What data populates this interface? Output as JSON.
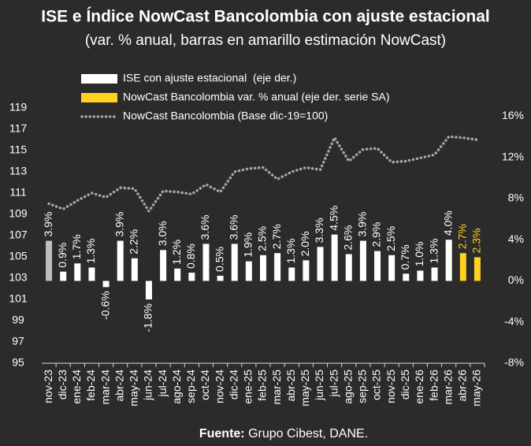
{
  "chart_data": {
    "type": "bar_line",
    "title": "ISE e Índice NowCast Bancolombia con ajuste estacional",
    "subtitle": "(var. % anual, barras en amarillo estimación NowCast)",
    "source_label": "Fuente:",
    "source": "Grupo Cibest, DANE.",
    "categories": [
      "nov-23",
      "dic-23",
      "ene-24",
      "feb-24",
      "mar-24",
      "abr-24",
      "may-24",
      "jun-24",
      "jul-24",
      "ago-24",
      "sep-24",
      "oct-24",
      "nov-24",
      "dic-24",
      "ene-25",
      "feb-25",
      "mar-25",
      "abr-25",
      "may-25",
      "jun-25",
      "jul-25",
      "ago-25",
      "sep-25",
      "oct-25",
      "nov-25",
      "dic-25",
      "ene-26",
      "feb-26",
      "mar-26",
      "abr-26",
      "may-26"
    ],
    "series": [
      {
        "name": "ISE con ajuste estacional  (eje der.)",
        "kind": "bar",
        "axis": "y2",
        "color": "#ffffff",
        "point_colors": [
          "#bfbfbf",
          null,
          null,
          null,
          null,
          null,
          null,
          null,
          null,
          null,
          null,
          null,
          null,
          null,
          null,
          null,
          null,
          null,
          null,
          null,
          null,
          null,
          null,
          null,
          null,
          null,
          null,
          null,
          null,
          null,
          null
        ],
        "values": [
          3.9,
          0.9,
          1.7,
          1.3,
          -0.6,
          3.9,
          2.2,
          -1.8,
          3.0,
          1.2,
          0.8,
          3.6,
          0.5,
          3.6,
          1.9,
          2.5,
          2.7,
          1.3,
          2.0,
          3.3,
          4.5,
          2.6,
          3.9,
          2.9,
          2.5,
          0.7,
          1.0,
          1.3,
          4.0,
          null,
          null
        ],
        "value_labels": [
          "3.9%",
          "0.9%",
          "1.7%",
          "1.3%",
          "-0.6%",
          "3.9%",
          "2.2%",
          "-1.8%",
          "3.0%",
          "1.2%",
          "0.8%",
          "3.6%",
          "0.5%",
          "3.6%",
          "1.9%",
          "2.5%",
          "2.7%",
          "1.3%",
          "2.0%",
          "3.3%",
          "4.5%",
          "2.6%",
          "3.9%",
          "2.9%",
          "2.5%",
          "0.7%",
          "1.0%",
          "1.3%",
          "4.0%",
          null,
          null
        ]
      },
      {
        "name": "NowCast Bancolombia var. % anual (eje der. serie SA)",
        "kind": "bar",
        "axis": "y2",
        "color": "#ffd21f",
        "values": [
          null,
          null,
          null,
          null,
          null,
          null,
          null,
          null,
          null,
          null,
          null,
          null,
          null,
          null,
          null,
          null,
          null,
          null,
          null,
          null,
          null,
          null,
          null,
          null,
          null,
          null,
          null,
          null,
          null,
          2.7,
          2.3
        ],
        "value_labels": [
          null,
          null,
          null,
          null,
          null,
          null,
          null,
          null,
          null,
          null,
          null,
          null,
          null,
          null,
          null,
          null,
          null,
          null,
          null,
          null,
          null,
          null,
          null,
          null,
          null,
          null,
          null,
          null,
          null,
          "2.7%",
          "2.3%"
        ]
      },
      {
        "name": "NowCast Bancolombia (Base dic-19=100)",
        "kind": "line",
        "color": "#a6a6a6",
        "values": [
          110.0,
          109.5,
          110.3,
          111.0,
          110.6,
          111.5,
          111.4,
          109.3,
          111.2,
          111.1,
          110.9,
          111.8,
          111.1,
          113.0,
          113.3,
          113.4,
          112.3,
          113.0,
          113.4,
          113.2,
          116.2,
          114.0,
          115.1,
          115.2,
          113.9,
          114.0,
          114.3,
          114.6,
          116.3,
          116.2,
          116.0
        ]
      }
    ],
    "ylim": [
      95,
      119
    ],
    "yticks": [
      95,
      97,
      99,
      101,
      103,
      105,
      107,
      109,
      111,
      113,
      115,
      117,
      119
    ],
    "y2lim": [
      -8,
      16.8
    ],
    "y2ticks": [
      {
        "value": -8,
        "label": "-8%"
      },
      {
        "value": -4,
        "label": "-4%"
      },
      {
        "value": 0,
        "label": "0%"
      },
      {
        "value": 4,
        "label": "4%"
      },
      {
        "value": 8,
        "label": "8%"
      },
      {
        "value": 12,
        "label": "12%"
      },
      {
        "value": 16,
        "label": "16%"
      }
    ],
    "grid": false
  }
}
